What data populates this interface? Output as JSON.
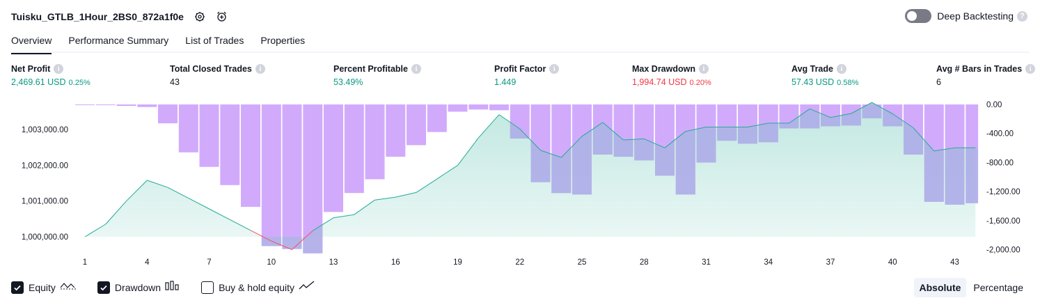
{
  "header": {
    "title": "Tuisku_GTLB_1Hour_2BS0_872a1f0e",
    "deep_backtesting_label": "Deep Backtesting"
  },
  "tabs": [
    {
      "label": "Overview"
    },
    {
      "label": "Performance Summary"
    },
    {
      "label": "List of Trades"
    },
    {
      "label": "Properties"
    }
  ],
  "metrics": {
    "net_profit": {
      "label": "Net Profit",
      "value": "2,469.61 USD",
      "sub": "0.25%"
    },
    "total_closed_trades": {
      "label": "Total Closed Trades",
      "value": "43"
    },
    "percent_profitable": {
      "label": "Percent Profitable",
      "value": "53.49%"
    },
    "profit_factor": {
      "label": "Profit Factor",
      "value": "1.449"
    },
    "max_drawdown": {
      "label": "Max Drawdown",
      "value": "1,994.74 USD",
      "sub": "0.20%"
    },
    "avg_trade": {
      "label": "Avg Trade",
      "value": "57.43 USD",
      "sub": "0.58%"
    },
    "avg_bars": {
      "label": "Avg # Bars in Trades",
      "value": "6"
    }
  },
  "legend": {
    "equity": "Equity",
    "drawdown": "Drawdown",
    "buy_hold": "Buy & hold equity"
  },
  "view_modes": {
    "absolute": "Absolute",
    "percentage": "Percentage"
  },
  "colors": {
    "equity_line": "#22ab94",
    "equity_below": "#f7525f",
    "drawdown_bar": "#d1aafc",
    "drawdown_overlap": "#b2b5e8",
    "positive": "#089981",
    "negative": "#f23645"
  },
  "chart_data": {
    "type": "line",
    "x": [
      1,
      2,
      3,
      4,
      5,
      6,
      7,
      8,
      9,
      10,
      11,
      12,
      13,
      14,
      15,
      16,
      17,
      18,
      19,
      20,
      21,
      22,
      23,
      24,
      25,
      26,
      27,
      28,
      29,
      30,
      31,
      32,
      33,
      34,
      35,
      36,
      37,
      38,
      39,
      40,
      41,
      42,
      43,
      44
    ],
    "x_ticks": [
      1,
      4,
      7,
      10,
      13,
      16,
      19,
      22,
      25,
      28,
      31,
      34,
      37,
      40,
      43
    ],
    "series": [
      {
        "name": "Equity",
        "axis": "left",
        "values": [
          1000000,
          1000350,
          1001000,
          1001580,
          1001380,
          1001080,
          1000780,
          1000480,
          1000180,
          999880,
          999640,
          1000170,
          1000530,
          1000620,
          1001030,
          1001110,
          1001240,
          1001620,
          1002000,
          1002770,
          1003420,
          1003020,
          1002420,
          1002220,
          1002810,
          1003200,
          1002710,
          1002740,
          1002490,
          1002950,
          1003070,
          1003070,
          1003070,
          1003180,
          1003180,
          1003580,
          1003340,
          1003450,
          1003760,
          1003440,
          1003050,
          1002400,
          1002490,
          1002490
        ]
      },
      {
        "name": "Drawdown",
        "axis": "right",
        "values": [
          0,
          -10,
          -20,
          -35,
          -260,
          -660,
          -860,
          -1110,
          -1410,
          -1950,
          -1990,
          -2050,
          -1480,
          -1220,
          -1030,
          -720,
          -560,
          -380,
          -100,
          -70,
          -80,
          -470,
          -1070,
          -1220,
          -1240,
          -690,
          -720,
          -770,
          -980,
          -1240,
          -800,
          -500,
          -540,
          -520,
          -330,
          -330,
          -300,
          -290,
          -190,
          -300,
          -690,
          -1340,
          -1380,
          -1360
        ]
      }
    ],
    "left_axis_ticks": [
      "1,000,000.00",
      "1,001,000.00",
      "1,002,000.00",
      "1,003,000.00"
    ],
    "right_axis_ticks": [
      "0.00",
      "-400.00",
      "-800.00",
      "-1,200.00",
      "-1,600.00",
      "-2,000.00"
    ],
    "legend_position": "bottom-left",
    "grid": false
  }
}
